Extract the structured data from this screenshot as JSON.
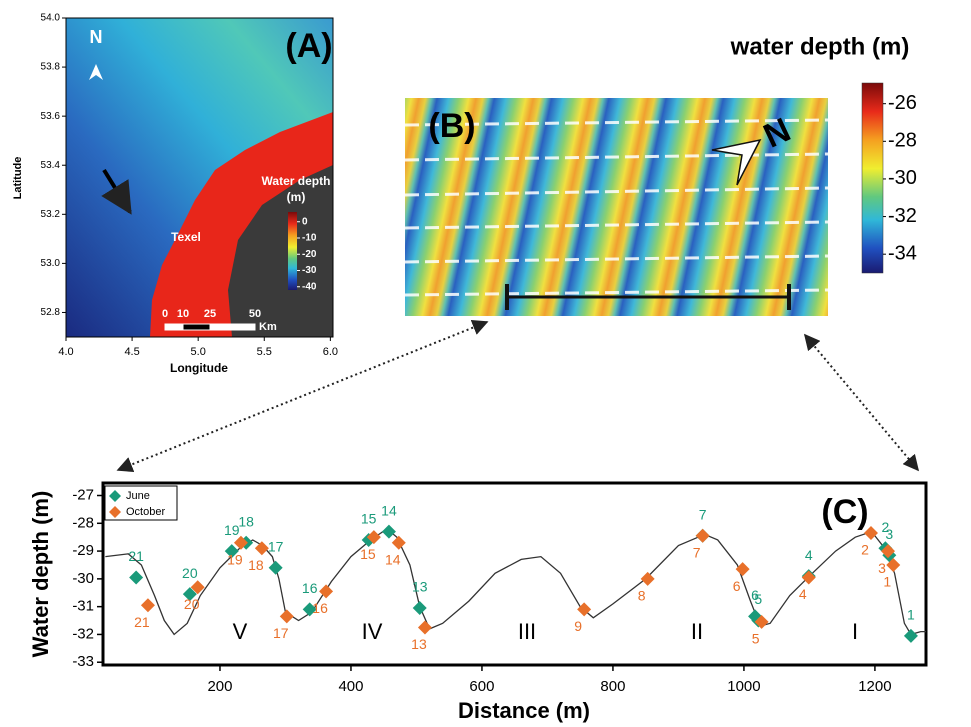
{
  "chart_data": [
    {
      "type": "map",
      "label": "(A)",
      "xlabel": "Longitude",
      "ylabel": "Latitude",
      "xlim": [
        4.0,
        6.02
      ],
      "ylim": [
        52.7,
        54.0
      ],
      "xticks": [
        {
          "value": 4,
          "label": "4.0"
        },
        {
          "value": 4.5,
          "label": "4.5"
        },
        {
          "value": 5,
          "label": "5.0"
        },
        {
          "value": 5.5,
          "label": "5.5"
        },
        {
          "value": 6,
          "label": "6.0"
        }
      ],
      "yticks": [
        {
          "value": 52.8,
          "label": "52.8"
        },
        {
          "value": 53,
          "label": "53.0"
        },
        {
          "value": 53.2,
          "label": "53.2"
        },
        {
          "value": 53.4,
          "label": "53.4"
        },
        {
          "value": 53.6,
          "label": "53.6"
        },
        {
          "value": 53.8,
          "label": "53.8"
        },
        {
          "value": 54,
          "label": "54.0"
        }
      ],
      "north": "N",
      "place": "Texel",
      "colorbar": {
        "title": [
          "Water depth",
          "(m)"
        ],
        "clim": [
          -42,
          6
        ],
        "ticks": [
          0,
          -10,
          -20,
          -30,
          -40
        ]
      },
      "scalebar": {
        "ticks": [
          0,
          10,
          25,
          50
        ],
        "unit": "Km"
      }
    },
    {
      "type": "map",
      "label": "(B)",
      "north": "N",
      "colorbar": {
        "title": "water depth (m)",
        "clim": [
          -35,
          -24.9
        ],
        "ticks": [
          -26,
          -28,
          -30,
          -32,
          -34
        ]
      }
    },
    {
      "type": "line",
      "label": "(C)",
      "xlabel": "Distance (m)",
      "ylabel": "Water depth (m)",
      "xlim": [
        21.4,
        1278
      ],
      "ylim": [
        -33.1,
        -26.55
      ],
      "xticks": [
        200,
        400,
        600,
        800,
        1000,
        1200
      ],
      "yticks": [
        -27,
        -28,
        -29,
        -30,
        -31,
        -32,
        -33
      ],
      "color": "#333333",
      "x": [
        25,
        60,
        80,
        100,
        115,
        130,
        150,
        170,
        200,
        230,
        250,
        265,
        280,
        290,
        300,
        320,
        340,
        370,
        400,
        430,
        455,
        470,
        490,
        505,
        520,
        540,
        580,
        620,
        660,
        690,
        720,
        750,
        770,
        800,
        850,
        900,
        940,
        960,
        990,
        1010,
        1025,
        1040,
        1070,
        1100,
        1140,
        1170,
        1195,
        1215,
        1230,
        1245,
        1255,
        1270,
        1278
      ],
      "values": [
        -29.2,
        -29.1,
        -29.5,
        -30.6,
        -31.5,
        -32.0,
        -31.6,
        -30.6,
        -29.6,
        -28.9,
        -28.6,
        -28.8,
        -29.2,
        -30.0,
        -31.2,
        -31.5,
        -31.2,
        -30.1,
        -29.2,
        -28.6,
        -28.2,
        -28.5,
        -29.5,
        -31.0,
        -31.8,
        -31.6,
        -30.8,
        -29.8,
        -29.3,
        -29.2,
        -29.8,
        -31.0,
        -31.4,
        -30.9,
        -30.0,
        -28.8,
        -28.4,
        -28.6,
        -29.5,
        -30.8,
        -31.7,
        -31.6,
        -30.6,
        -29.9,
        -29.0,
        -28.5,
        -28.3,
        -28.9,
        -29.8,
        -31.6,
        -32.0,
        -31.9,
        -31.9
      ],
      "series": [
        {
          "name": "June",
          "color": "#1a9a7a",
          "labels": [
            1,
            2,
            3,
            4,
            5,
            6,
            7,
            13,
            14,
            15,
            16,
            17,
            18,
            19,
            20,
            21
          ],
          "x": [
            1255,
            1216,
            1222,
            1099,
            1022,
            1017,
            937,
            505,
            458,
            427,
            337,
            285,
            240,
            218,
            154,
            72
          ],
          "values": [
            -32.05,
            -28.9,
            -29.15,
            -29.9,
            -31.5,
            -31.35,
            -28.45,
            -31.05,
            -28.3,
            -28.6,
            -31.1,
            -29.6,
            -28.7,
            -29.0,
            -30.55,
            -29.95
          ]
        },
        {
          "name": "October",
          "color": "#e8702a",
          "labels": [
            1,
            2,
            3,
            4,
            5,
            6,
            7,
            8,
            9,
            13,
            14,
            15,
            16,
            17,
            18,
            19,
            20,
            21
          ],
          "x": [
            1228,
            1194,
            1220,
            1099,
            1027,
            998,
            937,
            853,
            756,
            513,
            473,
            435,
            362,
            302,
            264,
            232,
            166,
            90
          ],
          "values": [
            -29.5,
            -28.35,
            -29.0,
            -29.95,
            -31.55,
            -29.65,
            -28.45,
            -30.0,
            -31.1,
            -31.75,
            -28.7,
            -28.5,
            -30.45,
            -31.35,
            -28.9,
            -28.7,
            -30.3,
            -30.95
          ]
        }
      ],
      "annotations": [
        "V",
        "IV",
        "III",
        "II",
        "I"
      ]
    }
  ]
}
